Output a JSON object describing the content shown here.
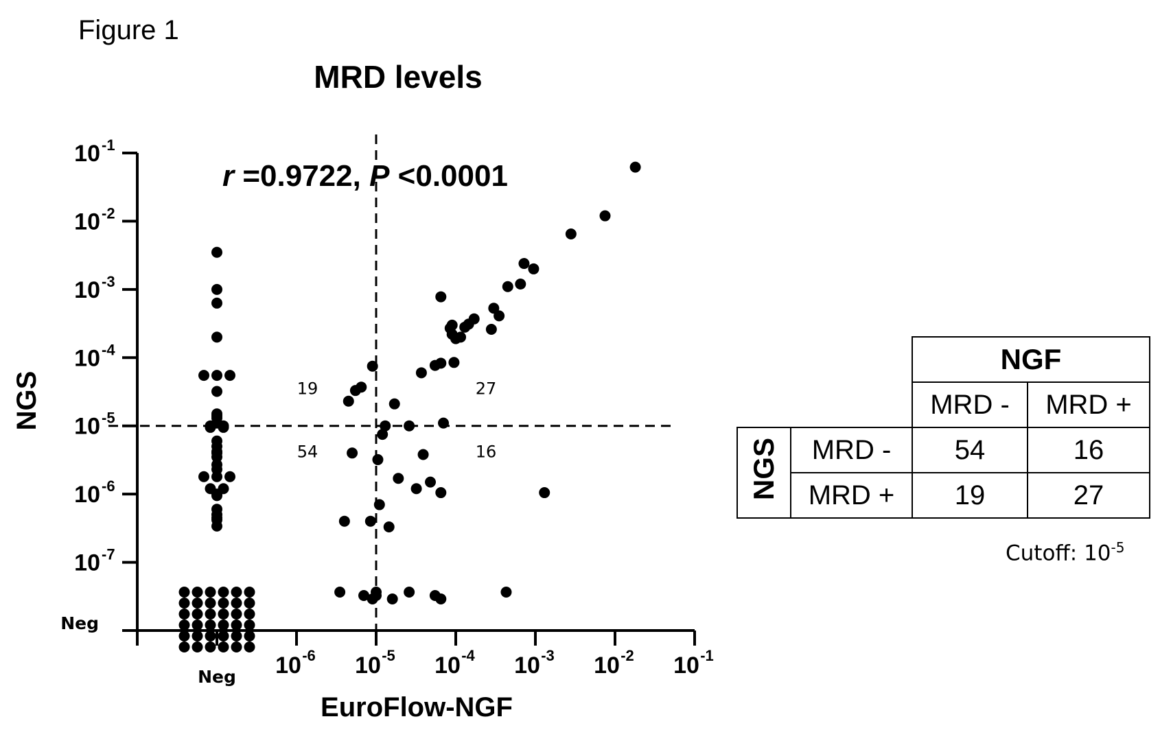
{
  "figure_label": "Figure 1",
  "chart_data": {
    "type": "scatter",
    "title": "MRD levels",
    "xlabel": "EuroFlow-NGF",
    "ylabel": "NGS",
    "x_scale": "log",
    "y_scale": "log",
    "xlim": [
      1e-08,
      0.1
    ],
    "ylim": [
      1e-08,
      0.1
    ],
    "x_neg_value": 1e-07,
    "y_neg_value": 1e-08,
    "x_ticks": [
      {
        "label": "Neg",
        "value": 1e-07,
        "neg": true
      },
      {
        "base": "10",
        "exp": "-6",
        "value": 1e-06
      },
      {
        "base": "10",
        "exp": "-5",
        "value": 1e-05
      },
      {
        "base": "10",
        "exp": "-4",
        "value": 0.0001
      },
      {
        "base": "10",
        "exp": "-3",
        "value": 0.001
      },
      {
        "base": "10",
        "exp": "-2",
        "value": 0.01
      },
      {
        "base": "10",
        "exp": "-1",
        "value": 0.1
      }
    ],
    "y_ticks": [
      {
        "label": "Neg",
        "value": 1e-08,
        "neg": true
      },
      {
        "base": "10",
        "exp": "-7",
        "value": 1e-07
      },
      {
        "base": "10",
        "exp": "-6",
        "value": 1e-06
      },
      {
        "base": "10",
        "exp": "-5",
        "value": 1e-05
      },
      {
        "base": "10",
        "exp": "-4",
        "value": 0.0001
      },
      {
        "base": "10",
        "exp": "-3",
        "value": 0.001
      },
      {
        "base": "10",
        "exp": "-2",
        "value": 0.01
      },
      {
        "base": "10",
        "exp": "-1",
        "value": 0.1
      }
    ],
    "cutoff_x": 1e-05,
    "cutoff_y": 1e-05,
    "annotation": {
      "r_symbol": "r",
      "r_value": " =0.9722, ",
      "p_symbol": "P",
      "p_value": " <0.0001"
    },
    "quadrant_counts": [
      {
        "label": "19",
        "quadrant": "upper-left"
      },
      {
        "label": "27",
        "quadrant": "upper-right"
      },
      {
        "label": "54",
        "quadrant": "lower-left"
      },
      {
        "label": "16",
        "quadrant": "lower-right"
      }
    ],
    "points": [
      {
        "x": 1e-07,
        "y": 0.0035
      },
      {
        "x": 1e-07,
        "y": 0.001
      },
      {
        "x": 1e-07,
        "y": 0.00063
      },
      {
        "x": 1e-07,
        "y": 0.0002
      },
      {
        "x": 1e-07,
        "y": 5.5e-05
      },
      {
        "x": 1e-07,
        "y": 5.5e-05
      },
      {
        "x": 1e-07,
        "y": 5.5e-05
      },
      {
        "x": 1e-07,
        "y": 3.2e-05
      },
      {
        "x": 1e-07,
        "y": 1.5e-05
      },
      {
        "x": 1e-07,
        "y": 1.4e-05
      },
      {
        "x": 1e-07,
        "y": 1.3e-05
      },
      {
        "x": 1e-07,
        "y": 1.1e-05
      },
      {
        "x": 1e-07,
        "y": 1e-05
      },
      {
        "x": 1e-07,
        "y": 1e-05
      },
      {
        "x": 1e-07,
        "y": 9.5e-06
      },
      {
        "x": 1e-07,
        "y": 9.5e-06
      },
      {
        "x": 1e-07,
        "y": 6e-06
      },
      {
        "x": 1e-07,
        "y": 5e-06
      },
      {
        "x": 1e-07,
        "y": 4.2e-06
      },
      {
        "x": 1e-07,
        "y": 4e-06
      },
      {
        "x": 1e-07,
        "y": 3.5e-06
      },
      {
        "x": 1e-07,
        "y": 2.7e-06
      },
      {
        "x": 1e-07,
        "y": 2.3e-06
      },
      {
        "x": 1e-07,
        "y": 1.8e-06
      },
      {
        "x": 1e-07,
        "y": 1.8e-06
      },
      {
        "x": 1e-07,
        "y": 1.8e-06
      },
      {
        "x": 1e-07,
        "y": 1.2e-06
      },
      {
        "x": 1e-07,
        "y": 1.2e-06
      },
      {
        "x": 1e-07,
        "y": 1e-06
      },
      {
        "x": 1e-07,
        "y": 9.5e-07
      },
      {
        "x": 1e-07,
        "y": 6e-07
      },
      {
        "x": 1e-07,
        "y": 5e-07
      },
      {
        "x": 1e-07,
        "y": 4.5e-07
      },
      {
        "x": 1e-07,
        "y": 4.2e-07
      },
      {
        "x": 1e-07,
        "y": 3.4e-07
      },
      {
        "x": 1e-07,
        "y": 1e-08,
        "count": 36
      },
      {
        "x": 4e-06,
        "y": 4e-07
      },
      {
        "x": 4.5e-06,
        "y": 2.3e-05
      },
      {
        "x": 5e-06,
        "y": 4e-06
      },
      {
        "x": 5.5e-06,
        "y": 3.3e-05
      },
      {
        "x": 6.5e-06,
        "y": 3.7e-05
      },
      {
        "x": 8.5e-06,
        "y": 4e-07
      },
      {
        "x": 9e-06,
        "y": 7.5e-05
      },
      {
        "x": 1.05e-05,
        "y": 3.2e-06
      },
      {
        "x": 1.1e-05,
        "y": 7e-07
      },
      {
        "x": 1.2e-05,
        "y": 7.5e-06
      },
      {
        "x": 1.3e-05,
        "y": 1e-05
      },
      {
        "x": 1.45e-05,
        "y": 3.3e-07
      },
      {
        "x": 1.7e-05,
        "y": 2.1e-05
      },
      {
        "x": 1.9e-05,
        "y": 1.7e-06
      },
      {
        "x": 2.6e-05,
        "y": 1e-05
      },
      {
        "x": 3.2e-05,
        "y": 1.2e-06
      },
      {
        "x": 3.7e-05,
        "y": 6e-05
      },
      {
        "x": 3.9e-05,
        "y": 3.8e-06
      },
      {
        "x": 4.8e-05,
        "y": 1.5e-06
      },
      {
        "x": 5.5e-05,
        "y": 7.7e-05
      },
      {
        "x": 6.5e-05,
        "y": 1.05e-06
      },
      {
        "x": 6.5e-05,
        "y": 8.3e-05
      },
      {
        "x": 6.5e-05,
        "y": 0.00078
      },
      {
        "x": 7e-05,
        "y": 1.1e-05
      },
      {
        "x": 8.5e-05,
        "y": 0.00027
      },
      {
        "x": 9e-05,
        "y": 0.00022
      },
      {
        "x": 9e-05,
        "y": 0.0003
      },
      {
        "x": 9.5e-05,
        "y": 8.5e-05
      },
      {
        "x": 0.0001,
        "y": 0.00019
      },
      {
        "x": 0.000115,
        "y": 0.0002
      },
      {
        "x": 0.00013,
        "y": 0.00028
      },
      {
        "x": 0.000145,
        "y": 0.00031
      },
      {
        "x": 0.00017,
        "y": 0.00037
      },
      {
        "x": 0.00028,
        "y": 0.00026
      },
      {
        "x": 0.0003,
        "y": 0.00053
      },
      {
        "x": 0.00035,
        "y": 0.00041
      },
      {
        "x": 0.00045,
        "y": 0.0011
      },
      {
        "x": 0.00065,
        "y": 0.0012
      },
      {
        "x": 0.00072,
        "y": 0.0024
      },
      {
        "x": 0.00095,
        "y": 0.002
      },
      {
        "x": 0.0013,
        "y": 1.05e-06
      },
      {
        "x": 0.0028,
        "y": 0.0065
      },
      {
        "x": 0.0075,
        "y": 0.012
      },
      {
        "x": 0.018,
        "y": 0.062
      }
    ],
    "neg_y_points": [
      {
        "x": 3.5e-06
      },
      {
        "x": 7e-06
      },
      {
        "x": 9e-06
      },
      {
        "x": 1e-05
      },
      {
        "x": 1e-05
      },
      {
        "x": 1.6e-05
      },
      {
        "x": 2.6e-05
      },
      {
        "x": 5.5e-05
      },
      {
        "x": 6.5e-05
      },
      {
        "x": 0.00043
      }
    ]
  },
  "table": {
    "col_group_header": "NGF",
    "col_headers": [
      "MRD -",
      "MRD +"
    ],
    "row_group_header": "NGS",
    "rows": [
      {
        "label": "MRD -",
        "values": [
          "54",
          "16"
        ]
      },
      {
        "label": "MRD +",
        "values": [
          "19",
          "27"
        ]
      }
    ]
  },
  "cutoff_note": {
    "text": "Cutoff: 10",
    "exp": "-5"
  }
}
